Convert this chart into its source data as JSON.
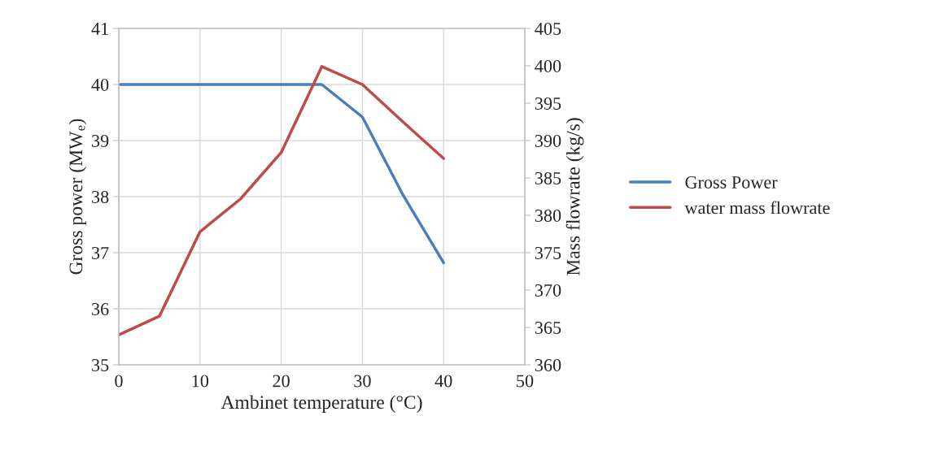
{
  "chart_data": {
    "type": "line",
    "xlabel": "Ambinet temperature (°C)",
    "ylabel": "Gross power (MW$_{e}$)",
    "y2label": "Mass flowrate (kg/s)",
    "x": [
      0,
      5,
      10,
      15,
      20,
      25,
      30,
      35,
      40
    ],
    "series": [
      {
        "name": "Gross Power",
        "color": "#4a7ebb",
        "values": [
          40,
          40,
          40,
          40,
          40,
          40,
          39.42,
          38.03,
          36.82
        ]
      },
      {
        "name": "water mass flowrate",
        "color": "#be4b48",
        "axis": "y2",
        "values": [
          364.0,
          366.5,
          377.8,
          382.2,
          388.4,
          399.9,
          397.5,
          392.5,
          387.6
        ]
      }
    ],
    "xlim": [
      0,
      50
    ],
    "xticks": [
      0,
      10,
      20,
      30,
      40,
      50
    ],
    "ylim": [
      35,
      41
    ],
    "yticks": [
      35,
      36,
      37,
      38,
      39,
      40,
      41
    ],
    "y2lim": [
      360,
      405
    ],
    "y2ticks": [
      360,
      365,
      370,
      375,
      380,
      385,
      390,
      395,
      400,
      405
    ],
    "grid": true,
    "legend": "right",
    "marker": "none",
    "line_style": "solid"
  }
}
